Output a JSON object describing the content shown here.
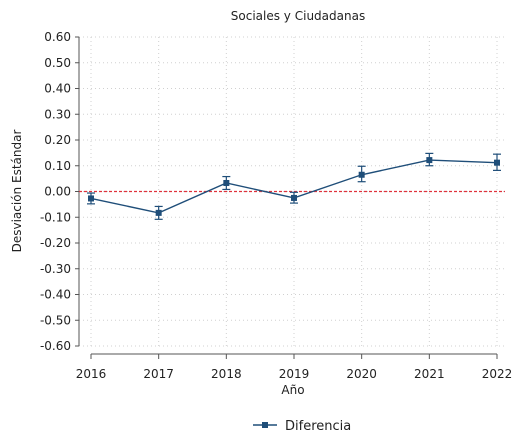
{
  "chart_data": {
    "type": "line",
    "title": "Sociales y Ciudadanas",
    "xlabel": "Año",
    "ylabel": "Desviación Estándar",
    "categories": [
      "2016",
      "2017",
      "2018",
      "2019",
      "2020",
      "2021",
      "2022"
    ],
    "ylim": [
      -0.6,
      0.6
    ],
    "y_ticks": [
      "0.60",
      "0.50",
      "0.40",
      "0.30",
      "0.20",
      "0.10",
      "0.00",
      "-0.10",
      "-0.20",
      "-0.30",
      "-0.40",
      "-0.50",
      "-0.60"
    ],
    "series": [
      {
        "name": "Diferencia",
        "values": [
          -0.027,
          -0.083,
          0.033,
          -0.025,
          0.065,
          0.122,
          0.112
        ],
        "error_low": [
          -0.048,
          -0.108,
          0.008,
          -0.045,
          0.038,
          0.1,
          0.082
        ],
        "error_high": [
          -0.006,
          -0.058,
          0.058,
          -0.003,
          0.098,
          0.148,
          0.145
        ]
      }
    ],
    "reference_line": {
      "y": 0.0,
      "style": "dashed"
    },
    "grid": true,
    "legend_position": "bottom",
    "colors": {
      "series": "#1f4e79",
      "reference": "#e0323c",
      "grid": "#d0d0d0",
      "axis": "#555555"
    }
  }
}
